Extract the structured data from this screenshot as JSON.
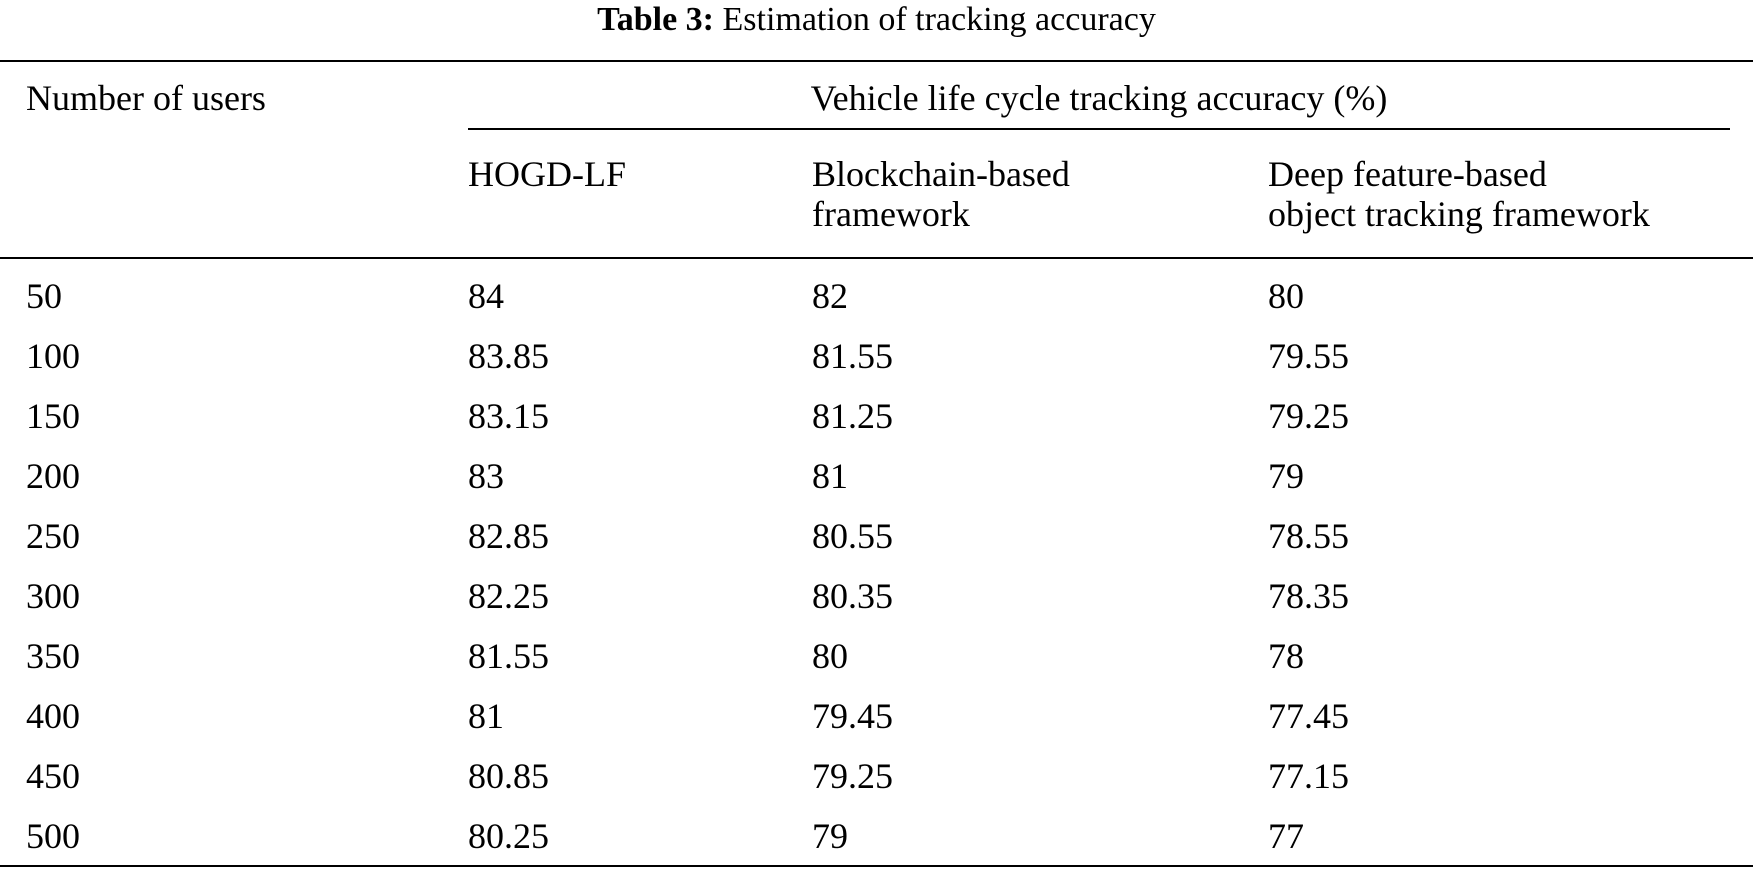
{
  "caption": {
    "label": "Table 3:",
    "text": "Estimation of tracking accuracy"
  },
  "header": {
    "users": "Number of users",
    "span": "Vehicle life cycle tracking accuracy (%)",
    "col1": "HOGD-LF",
    "col2_line1": "Blockchain-based",
    "col2_line2": "framework",
    "col3_line1": "Deep feature-based",
    "col3_line2": "object tracking framework"
  },
  "rows": [
    [
      "50",
      "84",
      "82",
      "80"
    ],
    [
      "100",
      "83.85",
      "81.55",
      "79.55"
    ],
    [
      "150",
      "83.15",
      "81.25",
      "79.25"
    ],
    [
      "200",
      "83",
      "81",
      "79"
    ],
    [
      "250",
      "82.85",
      "80.55",
      "78.55"
    ],
    [
      "300",
      "82.25",
      "80.35",
      "78.35"
    ],
    [
      "350",
      "81.55",
      "80",
      "78"
    ],
    [
      "400",
      "81",
      "79.45",
      "77.45"
    ],
    [
      "450",
      "80.85",
      "79.25",
      "77.15"
    ],
    [
      "500",
      "80.25",
      "79",
      "77"
    ]
  ]
}
